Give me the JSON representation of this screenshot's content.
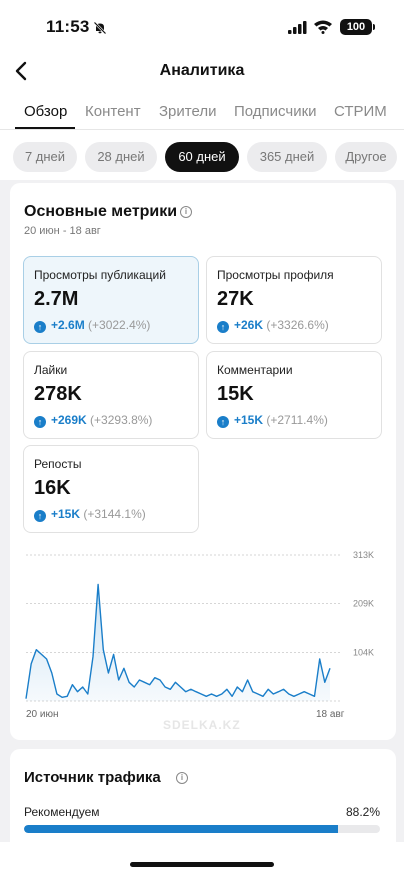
{
  "status_bar": {
    "time": "11:53",
    "battery": "100"
  },
  "header": {
    "title": "Аналитика",
    "back_icon": "chevron-left-icon"
  },
  "tabs": [
    {
      "label": "Обзор",
      "active": true
    },
    {
      "label": "Контент",
      "active": false
    },
    {
      "label": "Зрители",
      "active": false
    },
    {
      "label": "Подписчики",
      "active": false
    },
    {
      "label": "СТРИМ",
      "active": false
    }
  ],
  "periods": [
    {
      "label": "7 дней",
      "active": false
    },
    {
      "label": "28 дней",
      "active": false
    },
    {
      "label": "60 дней",
      "active": true
    },
    {
      "label": "365 дней",
      "active": false
    },
    {
      "label": "Другое",
      "active": false
    }
  ],
  "metrics_card": {
    "title": "Основные метрики",
    "date_range": "20 июн - 18 авг",
    "metrics": [
      {
        "label": "Просмотры публикаций",
        "value": "2.7M",
        "delta": "+2.6M",
        "delta_pct": "(+3022.4%)",
        "selected": true
      },
      {
        "label": "Просмотры профиля",
        "value": "27K",
        "delta": "+26K",
        "delta_pct": "(+3326.6%)",
        "selected": false
      },
      {
        "label": "Лайки",
        "value": "278K",
        "delta": "+269K",
        "delta_pct": "(+3293.8%)",
        "selected": false
      },
      {
        "label": "Комментарии",
        "value": "15K",
        "delta": "+15K",
        "delta_pct": "(+2711.4%)",
        "selected": false
      },
      {
        "label": "Репосты",
        "value": "16K",
        "delta": "+15K",
        "delta_pct": "(+3144.1%)",
        "selected": false
      }
    ]
  },
  "chart_data": {
    "type": "area",
    "x_labels": [
      "20 июн",
      "18 авг"
    ],
    "y_ticks": [
      "313K",
      "209K",
      "104K"
    ],
    "y_tick_values": [
      313000,
      209000,
      104000
    ],
    "ylim": [
      0,
      313000
    ],
    "grid": true,
    "color": "#1a7ec9",
    "values": [
      5000,
      80000,
      110000,
      100000,
      90000,
      60000,
      15000,
      8000,
      10000,
      35000,
      20000,
      30000,
      15000,
      95000,
      250000,
      110000,
      60000,
      100000,
      45000,
      70000,
      40000,
      30000,
      45000,
      40000,
      35000,
      50000,
      45000,
      30000,
      25000,
      40000,
      30000,
      20000,
      25000,
      20000,
      15000,
      10000,
      15000,
      10000,
      15000,
      25000,
      10000,
      30000,
      20000,
      45000,
      20000,
      15000,
      10000,
      25000,
      15000,
      20000,
      25000,
      15000,
      10000,
      15000,
      20000,
      15000,
      10000,
      90000,
      40000,
      70000
    ]
  },
  "watermark": "SDELKA.KZ",
  "traffic_card": {
    "title": "Источник трафика",
    "sources": [
      {
        "label": "Рекомендуем",
        "pct_label": "88.2%",
        "fraction": 0.882
      }
    ]
  }
}
